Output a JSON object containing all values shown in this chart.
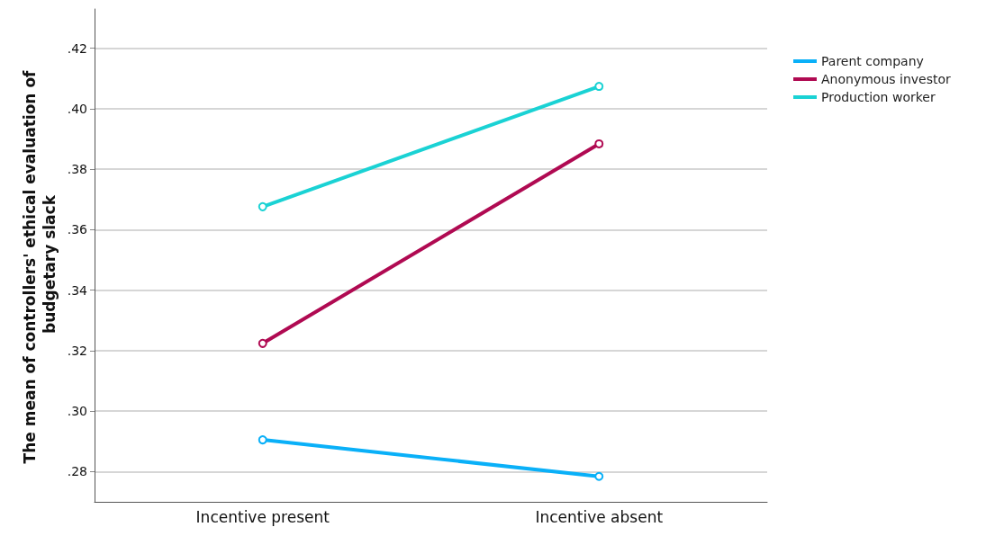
{
  "chart_data": {
    "type": "line",
    "ylabel": "The mean of controllers' ethical evaluation of budgetary slack",
    "categories": [
      "Incentive present",
      "Incentive absent"
    ],
    "series": [
      {
        "name": "Parent company",
        "color": "#0ab0f8",
        "values": [
          0.2905,
          0.2784
        ]
      },
      {
        "name": "Anonymous investor",
        "color": "#b00a52",
        "values": [
          0.3224,
          0.3884
        ]
      },
      {
        "name": "Production worker",
        "color": "#1ad2d4",
        "values": [
          0.3676,
          0.4074
        ]
      }
    ],
    "ylim": [
      0.27,
      0.433
    ],
    "yticks": [
      {
        "value": 0.28,
        "label": ".28"
      },
      {
        "value": 0.3,
        "label": ".30"
      },
      {
        "value": 0.32,
        "label": ".32"
      },
      {
        "value": 0.34,
        "label": ".34"
      },
      {
        "value": 0.36,
        "label": ".36"
      },
      {
        "value": 0.38,
        "label": ".38"
      },
      {
        "value": 0.4,
        "label": ".40"
      },
      {
        "value": 0.42,
        "label": ".42"
      }
    ],
    "grid": "y",
    "legend": "top right",
    "marker": "circle",
    "line_style": "solid"
  }
}
